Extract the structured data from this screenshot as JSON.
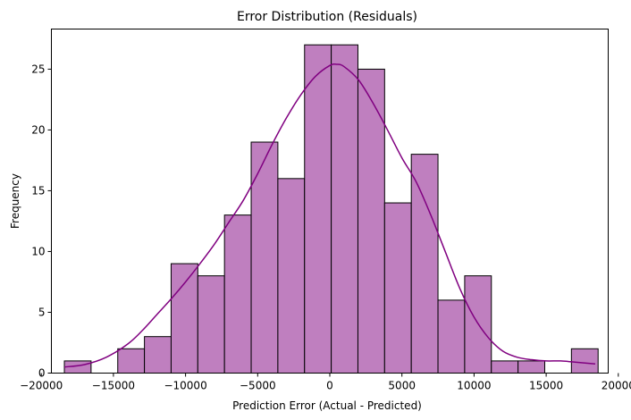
{
  "chart_data": {
    "type": "bar",
    "subtype": "histogram-with-kde",
    "title": "Error Distribution (Residuals)",
    "xlabel": "Prediction Error (Actual - Predicted)",
    "ylabel": "Frequency",
    "xlim": [
      -19300,
      19300
    ],
    "ylim": [
      0,
      28.3
    ],
    "xticks": [
      -20000,
      -15000,
      -10000,
      -5000,
      0,
      5000,
      10000,
      15000,
      20000
    ],
    "yticks": [
      0,
      5,
      10,
      15,
      20,
      25
    ],
    "bins": {
      "edges": [
        -18400,
        -16550,
        -14700,
        -12850,
        -11000,
        -9150,
        -7300,
        -5450,
        -3600,
        -1750,
        100,
        1950,
        3800,
        5650,
        7500,
        9350,
        11200,
        13050,
        14900,
        16750,
        18600
      ],
      "counts": [
        1,
        0,
        2,
        3,
        9,
        8,
        13,
        19,
        16,
        27,
        27,
        25,
        14,
        18,
        6,
        8,
        1,
        1,
        0,
        2
      ]
    },
    "kde": {
      "x": [
        -18400,
        -17000,
        -15500,
        -14000,
        -13000,
        -12000,
        -11000,
        -10000,
        -9000,
        -8000,
        -7000,
        -6000,
        -5000,
        -4000,
        -3000,
        -2000,
        -1000,
        0,
        500,
        1000,
        2000,
        3000,
        4000,
        5000,
        6000,
        7000,
        8000,
        9000,
        10000,
        11000,
        12000,
        13000,
        14000,
        15000,
        16000,
        17000,
        18400
      ],
      "y": [
        0.5,
        0.7,
        1.3,
        2.4,
        3.5,
        4.8,
        6.1,
        7.5,
        9.0,
        10.6,
        12.4,
        14.2,
        16.4,
        18.8,
        21.0,
        22.9,
        24.4,
        25.3,
        25.4,
        25.2,
        24.1,
        22.2,
        20.0,
        17.7,
        15.7,
        13.0,
        10.0,
        7.0,
        4.6,
        2.9,
        1.8,
        1.3,
        1.1,
        1.0,
        1.0,
        0.9,
        0.75
      ]
    },
    "grid": false,
    "colors": {
      "bar_fill": "#bf7fbf",
      "bar_edge": "#000000",
      "kde_line": "#800080"
    }
  }
}
